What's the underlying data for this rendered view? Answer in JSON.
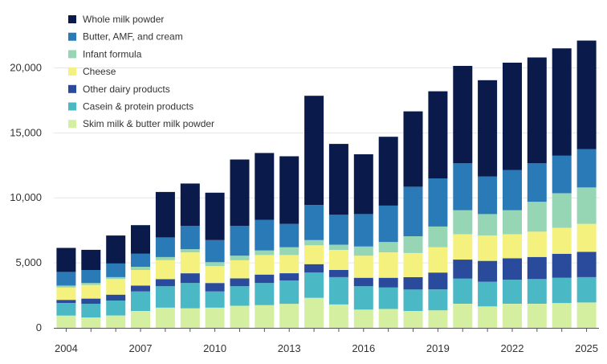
{
  "chart_data": {
    "type": "bar",
    "stacked": true,
    "title": "",
    "xlabel": "",
    "ylabel": "",
    "ylim": [
      0,
      22500
    ],
    "yticks": [
      0,
      5000,
      10000,
      15000,
      20000
    ],
    "ytick_labels": [
      "0",
      "5,000",
      "10,000",
      "15,000",
      "20,000"
    ],
    "categories": [
      "2004",
      "2005",
      "2006",
      "2007",
      "2008",
      "2009",
      "2010",
      "2011",
      "2012",
      "2013",
      "2014",
      "2015",
      "2016",
      "2017",
      "2018",
      "2019",
      "2020",
      "2021",
      "2022",
      "2023",
      "2024",
      "2025"
    ],
    "xtick_labels": [
      "2004",
      "2007",
      "2010",
      "2013",
      "2016",
      "2019",
      "2022",
      "2025"
    ],
    "legend_position": "top-left",
    "series": [
      {
        "name": "Skim milk & butter milk powder",
        "color": "#d4efa0",
        "values": [
          950,
          800,
          950,
          1300,
          1550,
          1500,
          1550,
          1700,
          1750,
          1850,
          2300,
          1800,
          1400,
          1450,
          1300,
          1350,
          1850,
          1650,
          1850,
          1850,
          1900,
          1950
        ]
      },
      {
        "name": "Casein & protein products",
        "color": "#4bb8c6",
        "values": [
          950,
          1050,
          1150,
          1500,
          1650,
          1950,
          1250,
          1500,
          1700,
          1800,
          1950,
          2100,
          1800,
          1650,
          1650,
          1600,
          1950,
          1900,
          1850,
          1900,
          1950,
          1950
        ]
      },
      {
        "name": "Other dairy products",
        "color": "#2a4a9c",
        "values": [
          250,
          400,
          450,
          450,
          550,
          750,
          650,
          600,
          650,
          550,
          650,
          550,
          650,
          750,
          950,
          1300,
          1450,
          1600,
          1650,
          1700,
          1850,
          1950
        ]
      },
      {
        "name": "Cheese",
        "color": "#f5f17e",
        "values": [
          950,
          1050,
          1200,
          1200,
          1450,
          1600,
          1300,
          1400,
          1500,
          1400,
          1450,
          1550,
          1700,
          1950,
          1850,
          1950,
          1950,
          1950,
          1850,
          1950,
          2000,
          2150
        ]
      },
      {
        "name": "Infant formula",
        "color": "#96d6b5",
        "values": [
          150,
          150,
          150,
          250,
          250,
          250,
          300,
          350,
          350,
          600,
          400,
          400,
          700,
          800,
          1300,
          1600,
          1850,
          1650,
          1850,
          2300,
          2650,
          2800
        ]
      },
      {
        "name": "Butter, AMF, and cream",
        "color": "#2a7ab8",
        "values": [
          1050,
          1000,
          1050,
          1000,
          1500,
          1800,
          1700,
          2300,
          2350,
          1800,
          2700,
          2300,
          2500,
          2800,
          3800,
          3700,
          3600,
          2900,
          3100,
          2950,
          2900,
          2950
        ]
      },
      {
        "name": "Whole milk powder",
        "color": "#0a1a4a",
        "values": [
          1850,
          1550,
          2150,
          2200,
          3500,
          3250,
          3650,
          5100,
          5150,
          5200,
          8400,
          5450,
          4600,
          5300,
          5800,
          6700,
          7500,
          7400,
          8250,
          8150,
          8250,
          8350
        ]
      }
    ]
  }
}
